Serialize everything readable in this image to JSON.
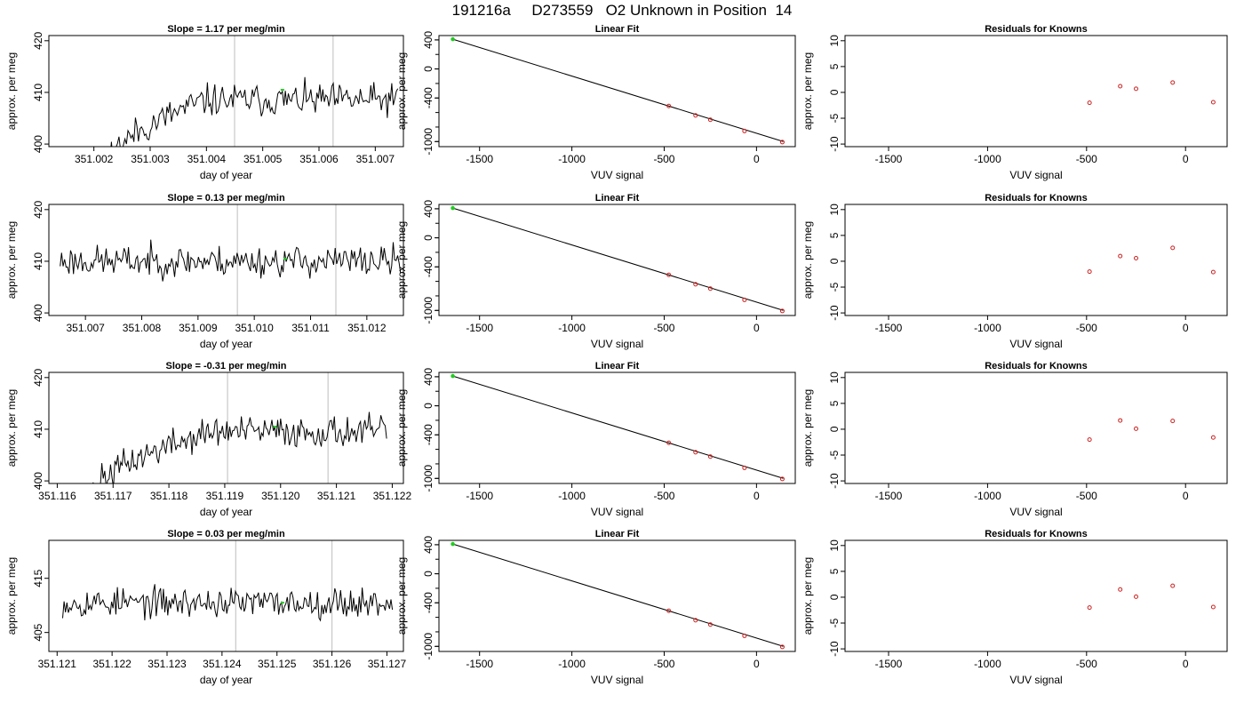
{
  "figure": {
    "title": "191216a     D273559   O2 Unknown in Position  14"
  },
  "chart_data": [
    {
      "type": "line",
      "row": 0,
      "col": 0,
      "title": "Slope =  1.17  per meg/min",
      "xlabel": "day of year",
      "ylabel": "approx. per meg",
      "xlim": [
        351.0012,
        351.0075
      ],
      "ylim": [
        399.5,
        421
      ],
      "xticks": [
        351.002,
        351.003,
        351.004,
        351.005,
        351.006,
        351.007
      ],
      "xtick_labels": [
        "351.002",
        "351.003",
        "351.004",
        "351.005",
        "351.006",
        "351.007"
      ],
      "yticks": [
        400,
        410,
        420
      ],
      "ytick_labels": [
        "400",
        "410",
        "420"
      ],
      "vlines": [
        351.0045,
        351.00625
      ],
      "series_gen": {
        "x0": 351.0013,
        "x1": 351.0074,
        "n": 230,
        "start": 393,
        "plateau": 408.5,
        "rise_start": 351.0021,
        "rise_end": 351.004,
        "noise": 2.4,
        "seed": 11
      },
      "marker": {
        "x": 351.00535,
        "y": 410.5
      }
    },
    {
      "type": "scatter",
      "row": 0,
      "col": 1,
      "title": "Linear Fit",
      "xlabel": "VUV signal",
      "ylabel": "approx. per meg",
      "xlim": [
        -1720,
        210
      ],
      "ylim": [
        -1070,
        460
      ],
      "xticks": [
        -1500,
        -1000,
        -500,
        0
      ],
      "xtick_labels": [
        "-1500",
        "-1000",
        "-500",
        "0"
      ],
      "yticks": [
        400,
        0,
        -400,
        -1000
      ],
      "ytick_labels": [
        "400",
        "0",
        "-400",
        "-1000"
      ],
      "fit_line": [
        [
          -1645,
          410
        ],
        [
          145,
          -1000
        ]
      ],
      "knowns": [
        [
          -475,
          -510
        ],
        [
          -330,
          -640
        ],
        [
          -250,
          -700
        ],
        [
          -65,
          -855
        ],
        [
          140,
          -1008
        ]
      ],
      "unknown": [
        -1645,
        410
      ]
    },
    {
      "type": "scatter",
      "row": 0,
      "col": 2,
      "title": "Residuals for Knowns",
      "xlabel": "VUV signal",
      "ylabel": "approx. per meg",
      "xlim": [
        -1720,
        210
      ],
      "ylim": [
        -10.5,
        11
      ],
      "xticks": [
        -1500,
        -1000,
        -500,
        0
      ],
      "xtick_labels": [
        "-1500",
        "-1000",
        "-500",
        "0"
      ],
      "yticks": [
        -10,
        -5,
        0,
        5,
        10
      ],
      "ytick_labels": [
        "-10",
        "-5",
        "0",
        "5",
        "10"
      ],
      "residuals": [
        [
          -485,
          -2.0
        ],
        [
          -330,
          1.2
        ],
        [
          -250,
          0.7
        ],
        [
          -65,
          1.9
        ],
        [
          140,
          -1.9
        ]
      ]
    },
    {
      "type": "line",
      "row": 1,
      "col": 0,
      "title": "Slope =  0.13  per meg/min",
      "xlabel": "day of year",
      "ylabel": "approx. per meg",
      "xlim": [
        351.00635,
        351.01265
      ],
      "ylim": [
        399.5,
        421
      ],
      "xticks": [
        351.007,
        351.008,
        351.009,
        351.01,
        351.011,
        351.012
      ],
      "xtick_labels": [
        "351.007",
        "351.008",
        "351.009",
        "351.010",
        "351.011",
        "351.012"
      ],
      "yticks": [
        400,
        410,
        420
      ],
      "ytick_labels": [
        "400",
        "410",
        "420"
      ],
      "vlines": [
        351.0097,
        351.01145
      ],
      "series_gen": {
        "x0": 351.00655,
        "x1": 351.0126,
        "n": 230,
        "start": 410,
        "plateau": 410,
        "rise_start": 351.0,
        "rise_end": 351.0001,
        "noise": 2.3,
        "seed": 23
      },
      "marker": {
        "x": 351.01055,
        "y": 410.5
      }
    },
    {
      "type": "scatter",
      "row": 1,
      "col": 1,
      "title": "Linear Fit",
      "xlabel": "VUV signal",
      "ylabel": "approx. per meg",
      "xlim": [
        -1720,
        210
      ],
      "ylim": [
        -1070,
        460
      ],
      "xticks": [
        -1500,
        -1000,
        -500,
        0
      ],
      "xtick_labels": [
        "-1500",
        "-1000",
        "-500",
        "0"
      ],
      "yticks": [
        400,
        0,
        -400,
        -1000
      ],
      "ytick_labels": [
        "400",
        "0",
        "-400",
        "-1000"
      ],
      "fit_line": [
        [
          -1645,
          410
        ],
        [
          145,
          -1000
        ]
      ],
      "knowns": [
        [
          -475,
          -510
        ],
        [
          -330,
          -640
        ],
        [
          -250,
          -700
        ],
        [
          -65,
          -855
        ],
        [
          140,
          -1008
        ]
      ],
      "unknown": [
        -1645,
        410
      ]
    },
    {
      "type": "scatter",
      "row": 1,
      "col": 2,
      "title": "Residuals for Knowns",
      "xlabel": "VUV signal",
      "ylabel": "approx. per meg",
      "xlim": [
        -1720,
        210
      ],
      "ylim": [
        -10.5,
        11
      ],
      "xticks": [
        -1500,
        -1000,
        -500,
        0
      ],
      "xtick_labels": [
        "-1500",
        "-1000",
        "-500",
        "0"
      ],
      "yticks": [
        -10,
        -5,
        0,
        5,
        10
      ],
      "ytick_labels": [
        "-10",
        "-5",
        "0",
        "5",
        "10"
      ],
      "residuals": [
        [
          -485,
          -2.0
        ],
        [
          -330,
          1.0
        ],
        [
          -250,
          0.6
        ],
        [
          -65,
          2.6
        ],
        [
          140,
          -2.1
        ]
      ]
    },
    {
      "type": "line",
      "row": 2,
      "col": 0,
      "title": "Slope =  -0.31  per meg/min",
      "xlabel": "day of year",
      "ylabel": "approx. per meg",
      "xlim": [
        351.11585,
        351.1222
      ],
      "ylim": [
        399.5,
        421
      ],
      "xticks": [
        351.116,
        351.117,
        351.118,
        351.119,
        351.12,
        351.121,
        351.122
      ],
      "xtick_labels": [
        "351.116",
        "351.117",
        "351.118",
        "351.119",
        "351.120",
        "351.121",
        "351.122"
      ],
      "yticks": [
        400,
        410,
        420
      ],
      "ytick_labels": [
        "400",
        "410",
        "420"
      ],
      "vlines": [
        351.11905,
        351.12085
      ],
      "series_gen": {
        "x0": 351.1162,
        "x1": 351.1219,
        "n": 220,
        "start": 396,
        "plateau": 409.5,
        "rise_start": 351.1166,
        "rise_end": 351.1188,
        "noise": 2.3,
        "seed": 37
      },
      "marker": {
        "x": 351.1199,
        "y": 410.5
      }
    },
    {
      "type": "scatter",
      "row": 2,
      "col": 1,
      "title": "Linear Fit",
      "xlabel": "VUV signal",
      "ylabel": "approx. per meg",
      "xlim": [
        -1720,
        210
      ],
      "ylim": [
        -1070,
        460
      ],
      "xticks": [
        -1500,
        -1000,
        -500,
        0
      ],
      "xtick_labels": [
        "-1500",
        "-1000",
        "-500",
        "0"
      ],
      "yticks": [
        400,
        0,
        -400,
        -1000
      ],
      "ytick_labels": [
        "400",
        "0",
        "-400",
        "-1000"
      ],
      "fit_line": [
        [
          -1645,
          410
        ],
        [
          145,
          -1000
        ]
      ],
      "knowns": [
        [
          -475,
          -510
        ],
        [
          -330,
          -640
        ],
        [
          -250,
          -700
        ],
        [
          -65,
          -855
        ],
        [
          140,
          -1008
        ]
      ],
      "unknown": [
        -1645,
        410
      ]
    },
    {
      "type": "scatter",
      "row": 2,
      "col": 2,
      "title": "Residuals for Knowns",
      "xlabel": "VUV signal",
      "ylabel": "approx. per meg",
      "xlim": [
        -1720,
        210
      ],
      "ylim": [
        -10.5,
        11
      ],
      "xticks": [
        -1500,
        -1000,
        -500,
        0
      ],
      "xtick_labels": [
        "-1500",
        "-1000",
        "-500",
        "0"
      ],
      "yticks": [
        -10,
        -5,
        0,
        5,
        10
      ],
      "ytick_labels": [
        "-10",
        "-5",
        "0",
        "5",
        "10"
      ],
      "residuals": [
        [
          -485,
          -2.0
        ],
        [
          -330,
          1.7
        ],
        [
          -250,
          0.1
        ],
        [
          -65,
          1.6
        ],
        [
          140,
          -1.6
        ]
      ]
    },
    {
      "type": "line",
      "row": 3,
      "col": 0,
      "title": "Slope =  0.03  per meg/min",
      "xlabel": "day of year",
      "ylabel": "approx. per meg",
      "xlim": [
        351.12085,
        351.1273
      ],
      "ylim": [
        401.5,
        422
      ],
      "xticks": [
        351.121,
        351.122,
        351.123,
        351.124,
        351.125,
        351.126,
        351.127
      ],
      "xtick_labels": [
        "351.121",
        "351.122",
        "351.123",
        "351.124",
        "351.125",
        "351.126",
        "351.127"
      ],
      "yticks": [
        405,
        415
      ],
      "ytick_labels": [
        "405",
        "415"
      ],
      "vlines": [
        351.12425,
        351.126
      ],
      "series_gen": {
        "x0": 351.1211,
        "x1": 351.1271,
        "n": 230,
        "start": 410.5,
        "plateau": 410.5,
        "rise_start": 351.0,
        "rise_end": 351.0001,
        "noise": 2.1,
        "seed": 53
      },
      "marker": {
        "x": 351.1251,
        "y": 410.5
      }
    },
    {
      "type": "scatter",
      "row": 3,
      "col": 1,
      "title": "Linear Fit",
      "xlabel": "VUV signal",
      "ylabel": "approx. per meg",
      "xlim": [
        -1720,
        210
      ],
      "ylim": [
        -1070,
        460
      ],
      "xticks": [
        -1500,
        -1000,
        -500,
        0
      ],
      "xtick_labels": [
        "-1500",
        "-1000",
        "-500",
        "0"
      ],
      "yticks": [
        400,
        0,
        -400,
        -1000
      ],
      "ytick_labels": [
        "400",
        "0",
        "-400",
        "-1000"
      ],
      "fit_line": [
        [
          -1645,
          410
        ],
        [
          145,
          -1000
        ]
      ],
      "knowns": [
        [
          -475,
          -510
        ],
        [
          -330,
          -640
        ],
        [
          -250,
          -700
        ],
        [
          -65,
          -855
        ],
        [
          140,
          -1008
        ]
      ],
      "unknown": [
        -1645,
        410
      ]
    },
    {
      "type": "scatter",
      "row": 3,
      "col": 2,
      "title": "Residuals for Knowns",
      "xlabel": "VUV signal",
      "ylabel": "approx. per meg",
      "xlim": [
        -1720,
        210
      ],
      "ylim": [
        -10.5,
        11
      ],
      "xticks": [
        -1500,
        -1000,
        -500,
        0
      ],
      "xtick_labels": [
        "-1500",
        "-1000",
        "-500",
        "0"
      ],
      "yticks": [
        -10,
        -5,
        0,
        5,
        10
      ],
      "ytick_labels": [
        "-10",
        "-5",
        "0",
        "5",
        "10"
      ],
      "residuals": [
        [
          -485,
          -2.0
        ],
        [
          -330,
          1.5
        ],
        [
          -250,
          0.1
        ],
        [
          -65,
          2.2
        ],
        [
          140,
          -1.9
        ]
      ]
    }
  ],
  "colors": {
    "line": "#000000",
    "vline": "#c8c8c8",
    "unknown_point": "#22cc22",
    "known_point": "#cc2222"
  }
}
